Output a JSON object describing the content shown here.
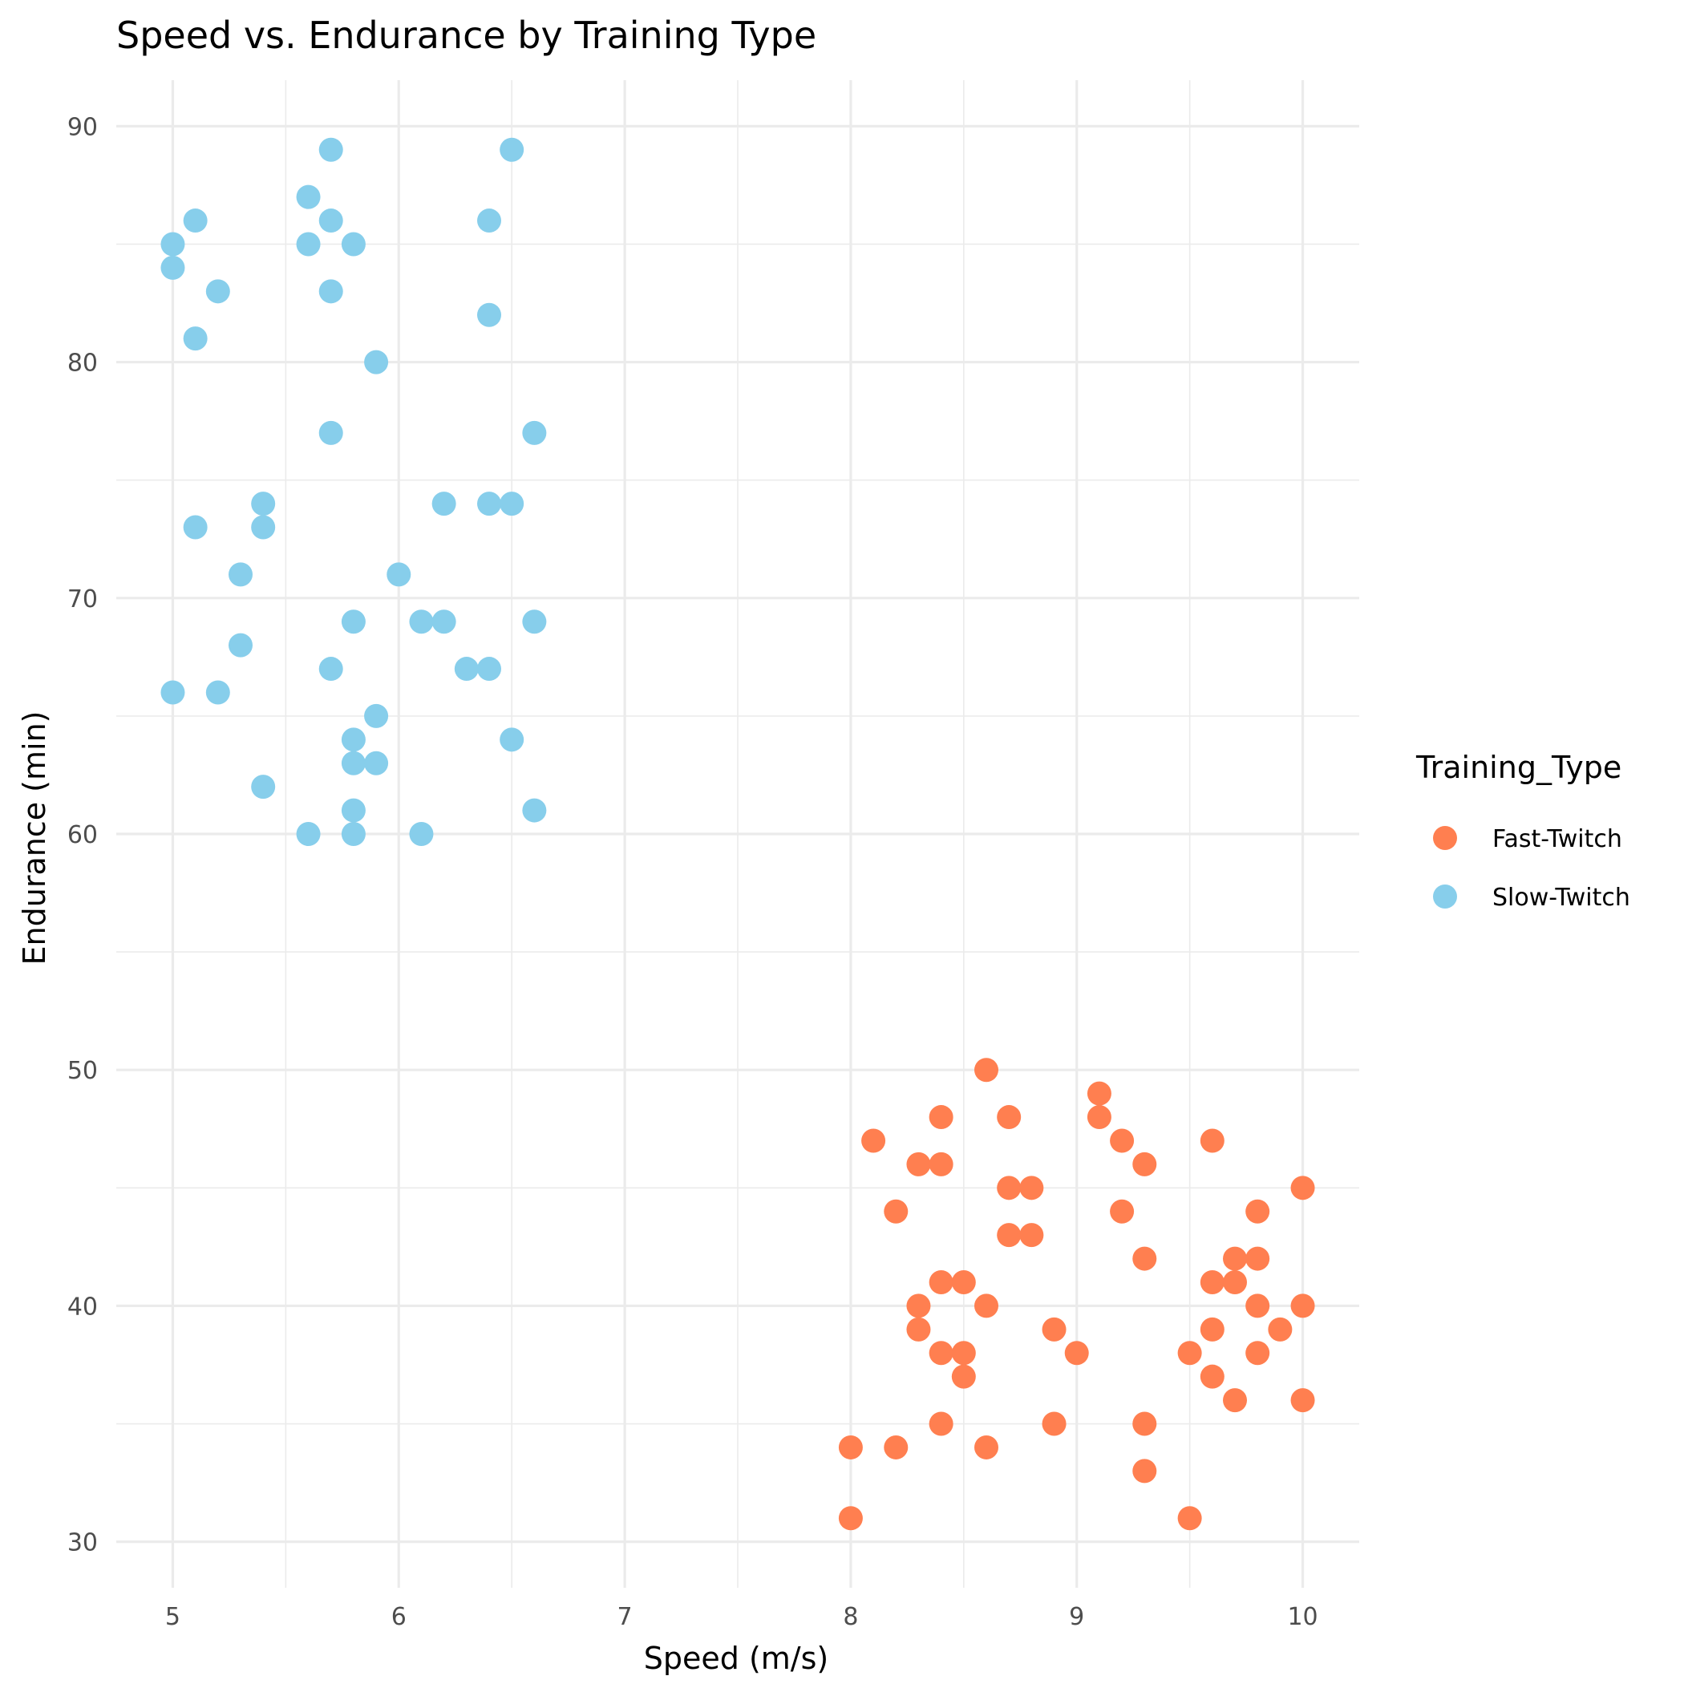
{
  "chart_data": {
    "type": "scatter",
    "title": "Speed vs. Endurance by Training Type",
    "xlabel": "Speed (m/s)",
    "ylabel": "Endurance (min)",
    "xlim": [
      4.75,
      10.25
    ],
    "ylim": [
      28.05,
      91.95
    ],
    "xticks": [
      5,
      6,
      7,
      8,
      9,
      10
    ],
    "yticks": [
      30,
      40,
      50,
      60,
      70,
      80,
      90
    ],
    "xticks_minor": [
      5.5,
      6.5,
      7.5,
      8.5,
      9.5
    ],
    "yticks_minor": [
      35,
      45,
      55,
      65,
      75,
      85
    ],
    "grid": true,
    "legend_title": "Training_Type",
    "legend_position": "right",
    "series": [
      {
        "name": "Fast-Twitch",
        "color": "#FF7F50",
        "points": [
          [
            8.6,
            50
          ],
          [
            9.1,
            49
          ],
          [
            8.4,
            48
          ],
          [
            8.7,
            48
          ],
          [
            9.1,
            48
          ],
          [
            8.1,
            47
          ],
          [
            9.2,
            47
          ],
          [
            9.6,
            47
          ],
          [
            8.3,
            46
          ],
          [
            8.4,
            46
          ],
          [
            9.3,
            46
          ],
          [
            8.7,
            45
          ],
          [
            8.8,
            45
          ],
          [
            10.0,
            45
          ],
          [
            8.2,
            44
          ],
          [
            9.2,
            44
          ],
          [
            9.8,
            44
          ],
          [
            8.7,
            43
          ],
          [
            8.8,
            43
          ],
          [
            9.3,
            42
          ],
          [
            9.7,
            42
          ],
          [
            9.8,
            42
          ],
          [
            8.4,
            41
          ],
          [
            8.5,
            41
          ],
          [
            9.6,
            41
          ],
          [
            9.7,
            41
          ],
          [
            8.3,
            40
          ],
          [
            8.6,
            40
          ],
          [
            9.8,
            40
          ],
          [
            10.0,
            40
          ],
          [
            8.3,
            39
          ],
          [
            8.9,
            39
          ],
          [
            9.6,
            39
          ],
          [
            9.9,
            39
          ],
          [
            8.4,
            38
          ],
          [
            8.5,
            38
          ],
          [
            9.0,
            38
          ],
          [
            9.5,
            38
          ],
          [
            9.8,
            38
          ],
          [
            8.5,
            37
          ],
          [
            9.6,
            37
          ],
          [
            9.7,
            36
          ],
          [
            10.0,
            36
          ],
          [
            8.4,
            35
          ],
          [
            8.9,
            35
          ],
          [
            9.3,
            35
          ],
          [
            8.0,
            34
          ],
          [
            8.2,
            34
          ],
          [
            8.6,
            34
          ],
          [
            9.3,
            33
          ],
          [
            8.0,
            31
          ],
          [
            9.5,
            31
          ]
        ]
      },
      {
        "name": "Slow-Twitch",
        "color": "#87CEEB",
        "points": [
          [
            5.7,
            89
          ],
          [
            6.5,
            89
          ],
          [
            5.6,
            87
          ],
          [
            5.1,
            86
          ],
          [
            5.7,
            86
          ],
          [
            6.4,
            86
          ],
          [
            5.0,
            85
          ],
          [
            5.6,
            85
          ],
          [
            5.8,
            85
          ],
          [
            5.0,
            84
          ],
          [
            5.2,
            83
          ],
          [
            5.7,
            83
          ],
          [
            6.4,
            82
          ],
          [
            5.1,
            81
          ],
          [
            5.9,
            80
          ],
          [
            5.7,
            77
          ],
          [
            6.6,
            77
          ],
          [
            5.4,
            74
          ],
          [
            6.2,
            74
          ],
          [
            6.4,
            74
          ],
          [
            6.5,
            74
          ],
          [
            5.1,
            73
          ],
          [
            5.4,
            73
          ],
          [
            5.3,
            71
          ],
          [
            6.0,
            71
          ],
          [
            5.8,
            69
          ],
          [
            6.1,
            69
          ],
          [
            6.2,
            69
          ],
          [
            6.6,
            69
          ],
          [
            5.3,
            68
          ],
          [
            5.7,
            67
          ],
          [
            6.3,
            67
          ],
          [
            6.4,
            67
          ],
          [
            5.0,
            66
          ],
          [
            5.2,
            66
          ],
          [
            5.9,
            65
          ],
          [
            5.8,
            64
          ],
          [
            6.5,
            64
          ],
          [
            5.8,
            63
          ],
          [
            5.9,
            63
          ],
          [
            5.4,
            62
          ],
          [
            5.8,
            61
          ],
          [
            6.6,
            61
          ],
          [
            5.6,
            60
          ],
          [
            5.8,
            60
          ],
          [
            6.1,
            60
          ]
        ]
      }
    ]
  }
}
